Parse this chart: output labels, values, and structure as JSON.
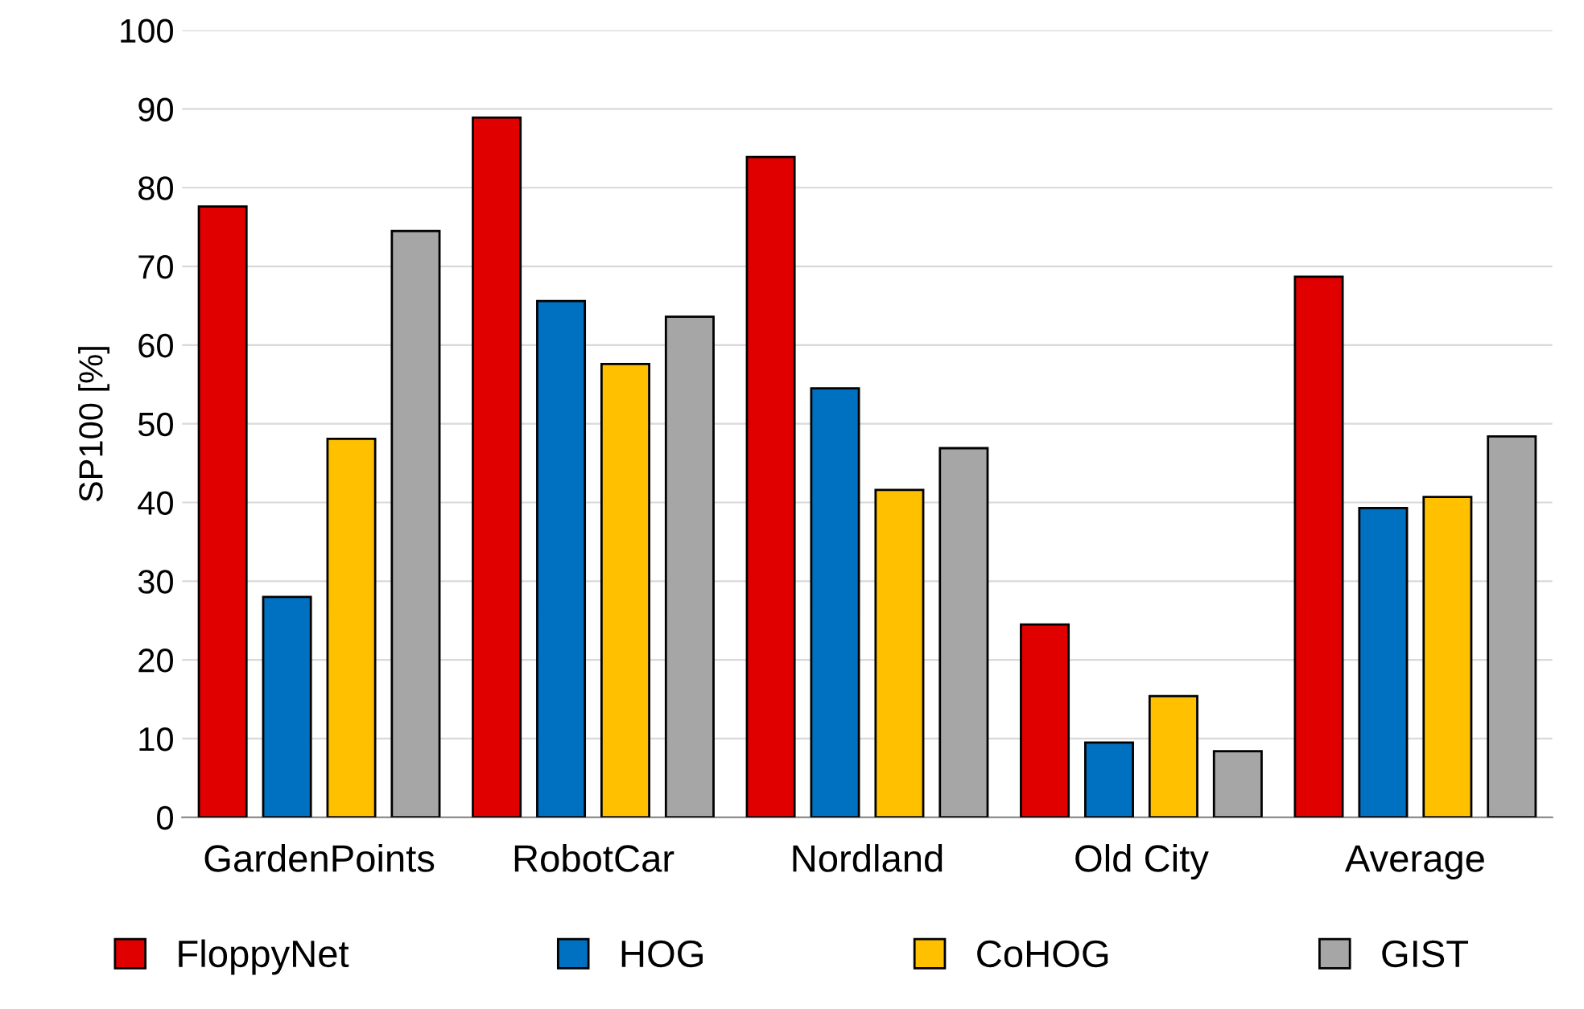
{
  "chart_data": {
    "type": "bar",
    "ylabel": "SP100 [%]",
    "categories": [
      "GardenPoints",
      "RobotCar",
      "Nordland",
      "Old City",
      "Average"
    ],
    "series": [
      {
        "name": "FloppyNet",
        "color": "#e00000",
        "values": [
          77.6,
          88.9,
          83.9,
          24.5,
          68.7
        ]
      },
      {
        "name": "HOG",
        "color": "#0070c0",
        "values": [
          28.0,
          65.6,
          54.5,
          9.5,
          39.3
        ]
      },
      {
        "name": "CoHOG",
        "color": "#ffc000",
        "values": [
          48.1,
          57.6,
          41.6,
          15.4,
          40.7
        ]
      },
      {
        "name": "GIST",
        "color": "#a6a6a6",
        "values": [
          74.5,
          63.6,
          46.9,
          8.4,
          48.4
        ]
      }
    ],
    "ylim": [
      0,
      100
    ],
    "yticks": [
      0,
      10,
      20,
      30,
      40,
      50,
      60,
      70,
      80,
      90,
      100
    ],
    "grid": "y",
    "legend": "bottom"
  }
}
